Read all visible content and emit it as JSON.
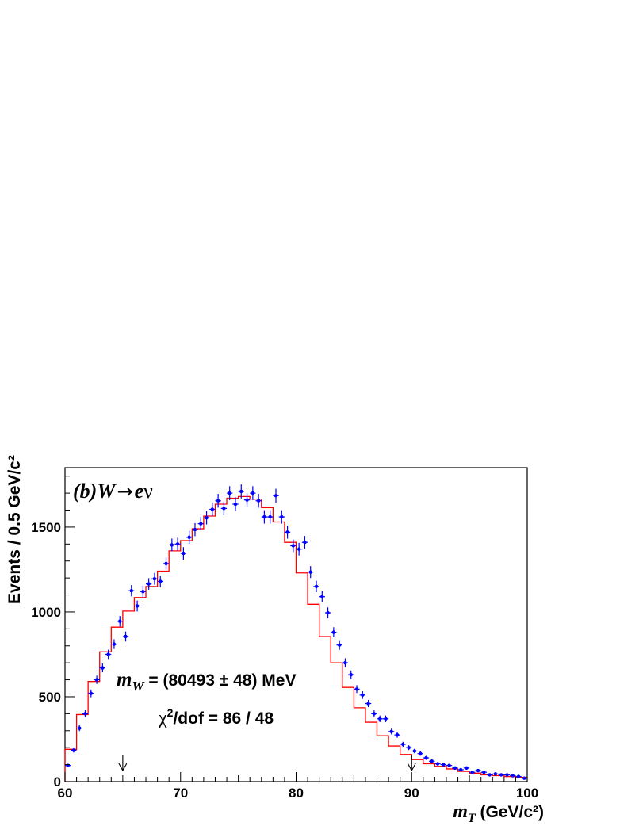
{
  "chart_data": {
    "type": "histogram",
    "xlabel_var": "m",
    "xlabel_sub": "T",
    "xlabel_units": " (GeV/c²)",
    "ylabel": "Events / 0.5 GeV/c²",
    "xlim": [
      60,
      100
    ],
    "ylim": [
      0,
      1850
    ],
    "xticks": [
      "60",
      "70",
      "80",
      "90",
      "100"
    ],
    "yticks": [
      "0",
      "500",
      "1000",
      "1500"
    ],
    "grid": false,
    "legend": "none",
    "panel_label": {
      "tag": "(b)",
      "boson": "W",
      "arrow": "→",
      "lepton": "e",
      "neutrino": "ν"
    },
    "annotations": {
      "mass_var": "m",
      "mass_sub": "W",
      "mass_text": " = (80493 ± 48) MeV",
      "chi2_base": "χ",
      "chi2_sup": "2",
      "chi2_text": "/dof = 86 / 48"
    },
    "fit_window_arrows_x": [
      65,
      90
    ],
    "colors": {
      "data": "#0000ff",
      "fit": "#ff0000",
      "axis": "#000000"
    },
    "series": [
      {
        "kind": "points",
        "x": [
          60.25,
          60.75,
          61.25,
          61.75,
          62.25,
          62.75,
          63.25,
          63.75,
          64.25,
          64.75,
          65.25,
          65.75,
          66.25,
          66.75,
          67.25,
          67.75,
          68.25,
          68.75,
          69.25,
          69.75,
          70.25,
          70.75,
          71.25,
          71.75,
          72.25,
          72.75,
          73.25,
          73.75,
          74.25,
          74.75,
          75.25,
          75.75,
          76.25,
          76.75,
          77.25,
          77.75,
          78.25,
          78.75,
          79.25,
          79.75,
          80.25,
          80.75,
          81.25,
          81.75,
          82.25,
          82.75,
          83.25,
          83.75,
          84.25,
          84.75,
          85.25,
          85.75,
          86.25,
          86.75,
          87.25,
          87.75,
          88.25,
          88.75,
          89.25,
          89.75,
          90.25,
          90.75,
          91.25,
          91.75,
          92.25,
          92.75,
          93.25,
          93.75,
          94.25,
          94.75,
          95.25,
          95.75,
          96.25,
          96.75,
          97.25,
          97.75,
          98.25,
          98.75,
          99.25,
          99.75
        ],
        "y": [
          95,
          185,
          315,
          400,
          520,
          600,
          670,
          750,
          810,
          945,
          855,
          1125,
          1035,
          1120,
          1165,
          1195,
          1180,
          1285,
          1395,
          1400,
          1345,
          1440,
          1485,
          1520,
          1555,
          1605,
          1655,
          1610,
          1700,
          1635,
          1710,
          1660,
          1700,
          1655,
          1560,
          1560,
          1685,
          1560,
          1470,
          1390,
          1370,
          1410,
          1235,
          1150,
          1090,
          995,
          880,
          805,
          700,
          630,
          545,
          510,
          460,
          400,
          370,
          370,
          295,
          275,
          220,
          200,
          180,
          165,
          140,
          120,
          105,
          100,
          95,
          80,
          70,
          80,
          55,
          65,
          55,
          40,
          45,
          40,
          40,
          35,
          30,
          20
        ]
      },
      {
        "kind": "fit-histogram",
        "bins_lo": [
          60,
          61,
          62,
          63,
          64,
          65,
          66,
          67,
          68,
          69,
          70,
          71,
          72,
          73,
          74,
          75,
          76,
          77,
          78,
          79,
          80,
          81,
          82,
          83,
          84,
          85,
          86,
          87,
          88,
          89,
          90,
          91,
          92,
          93,
          94,
          95,
          96,
          97,
          98,
          99
        ],
        "y": [
          190,
          395,
          590,
          765,
          910,
          1005,
          1085,
          1150,
          1240,
          1360,
          1420,
          1490,
          1565,
          1635,
          1670,
          1680,
          1665,
          1615,
          1530,
          1410,
          1230,
          1045,
          855,
          700,
          555,
          435,
          350,
          270,
          210,
          160,
          130,
          105,
          90,
          75,
          60,
          50,
          40,
          35,
          30,
          25
        ]
      }
    ]
  }
}
